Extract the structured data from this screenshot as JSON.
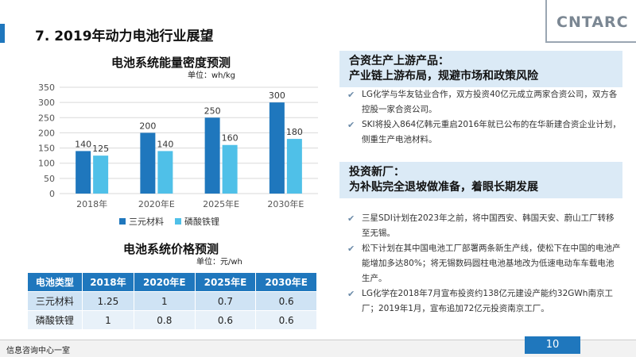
{
  "page_title": "7. 2019年动力电池行业展望",
  "logo": "CNTARC",
  "energy_chart": {
    "title": "电池系统能量密度预测",
    "unit": "单位：wh/kg"
  },
  "chart_data": {
    "type": "bar",
    "title": "电池系统能量密度预测",
    "categories": [
      "2018年",
      "2020年E",
      "2025年E",
      "2030年E"
    ],
    "series": [
      {
        "name": "三元材料",
        "values": [
          140,
          200,
          250,
          300
        ],
        "color": "#1f77bd"
      },
      {
        "name": "磷酸铁锂",
        "values": [
          125,
          140,
          160,
          180
        ],
        "color": "#4fc0e8"
      }
    ],
    "yticks": [
      "0",
      "50",
      "100",
      "150",
      "200",
      "250",
      "300",
      "350"
    ],
    "ylim": [
      0,
      350
    ],
    "grid": true,
    "legend": "bottom"
  },
  "price_table": {
    "title": "电池系统价格预测",
    "unit": "单位：元/wh",
    "headers": [
      "电池类型",
      "2018年",
      "2020年E",
      "2025年E",
      "2030年E"
    ],
    "rows": [
      [
        "三元材料",
        "1.25",
        "1",
        "0.7",
        "0.6"
      ],
      [
        "磷酸铁锂",
        "1",
        "0.8",
        "0.6",
        "0.6"
      ]
    ]
  },
  "box1": {
    "line1": "合资生产上游产品：",
    "line2": "产业链上游布局，规避市场和政策风险"
  },
  "bullets1": [
    "LG化学与华友钴业合作，双方投资40亿元成立两家合资公司，双方各控股一家合资公司。",
    "SKI将投入864亿韩元重启2016年就已公布的在华新建合资企业计划，侧重生产电池材料。"
  ],
  "box2": {
    "line1": "投资新厂：",
    "line2": "为补贴完全退坡做准备，着眼长期发展"
  },
  "bullets2": [
    "三星SDI计划在2023年之前，将中国西安、韩国天安、蔚山工厂转移至无锡。",
    "松下计划在其中国电池工厂部署两条新生产线，使松下在中国的电池产能增加多达80%；将无锡数码圆柱电池基地改为低速电动车车载电池生产。",
    "LG化学在2018年7月宣布投资约138亿元建设产能约32GWh南京工厂；2019年1月，宣布追加72亿元投资南京工厂。"
  ],
  "footer": "信息咨询中心一室",
  "page_number": "10"
}
